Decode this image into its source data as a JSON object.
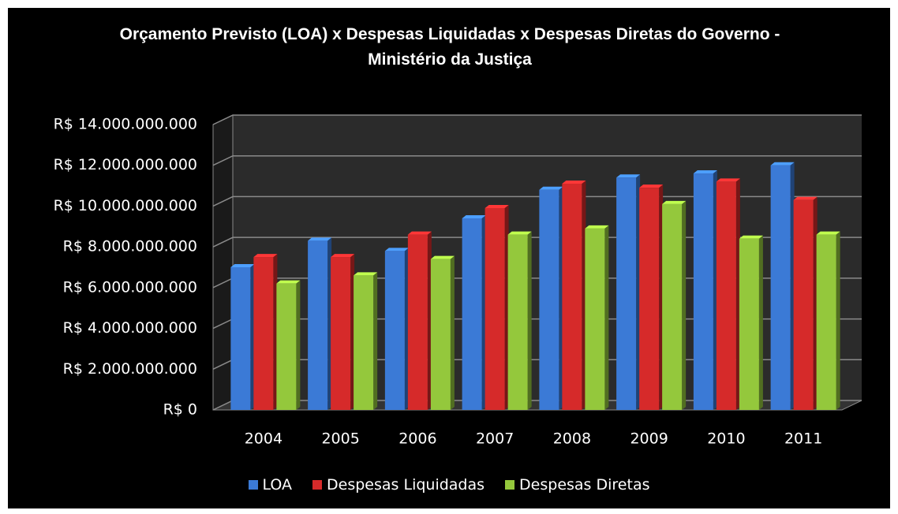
{
  "chart_data": {
    "type": "bar3d",
    "title": "Orçamento Previsto (LOA) x Despesas Liquidadas x Despesas Diretas do Governo - Ministério da Justiça",
    "categories": [
      "2004",
      "2005",
      "2006",
      "2007",
      "2008",
      "2009",
      "2010",
      "2011"
    ],
    "series": [
      {
        "name": "LOA",
        "color": "#3b7ad6",
        "values": [
          7000000000,
          8300000000,
          7800000000,
          9400000000,
          10800000000,
          11400000000,
          11600000000,
          12000000000
        ]
      },
      {
        "name": "Despesas Liquidadas",
        "color": "#d62a2a",
        "values": [
          7500000000,
          7500000000,
          8600000000,
          9900000000,
          11100000000,
          10900000000,
          11200000000,
          10300000000
        ]
      },
      {
        "name": "Despesas Diretas",
        "color": "#94c83c",
        "values": [
          6200000000,
          6600000000,
          7400000000,
          8600000000,
          8900000000,
          10100000000,
          8400000000,
          8600000000
        ]
      }
    ],
    "ylim": [
      0,
      14000000000
    ],
    "yticks": [
      {
        "value": 0,
        "label": "R$ 0"
      },
      {
        "value": 2000000000,
        "label": "R$ 2.000.000.000"
      },
      {
        "value": 4000000000,
        "label": "R$ 4.000.000.000"
      },
      {
        "value": 6000000000,
        "label": "R$ 6.000.000.000"
      },
      {
        "value": 8000000000,
        "label": "R$ 8.000.000.000"
      },
      {
        "value": 10000000000,
        "label": "R$ 10.000.000.000"
      },
      {
        "value": 12000000000,
        "label": "R$ 12.000.000.000"
      },
      {
        "value": 14000000000,
        "label": "R$ 14.000.000.000"
      }
    ],
    "grid": true,
    "legend": "bottom"
  }
}
